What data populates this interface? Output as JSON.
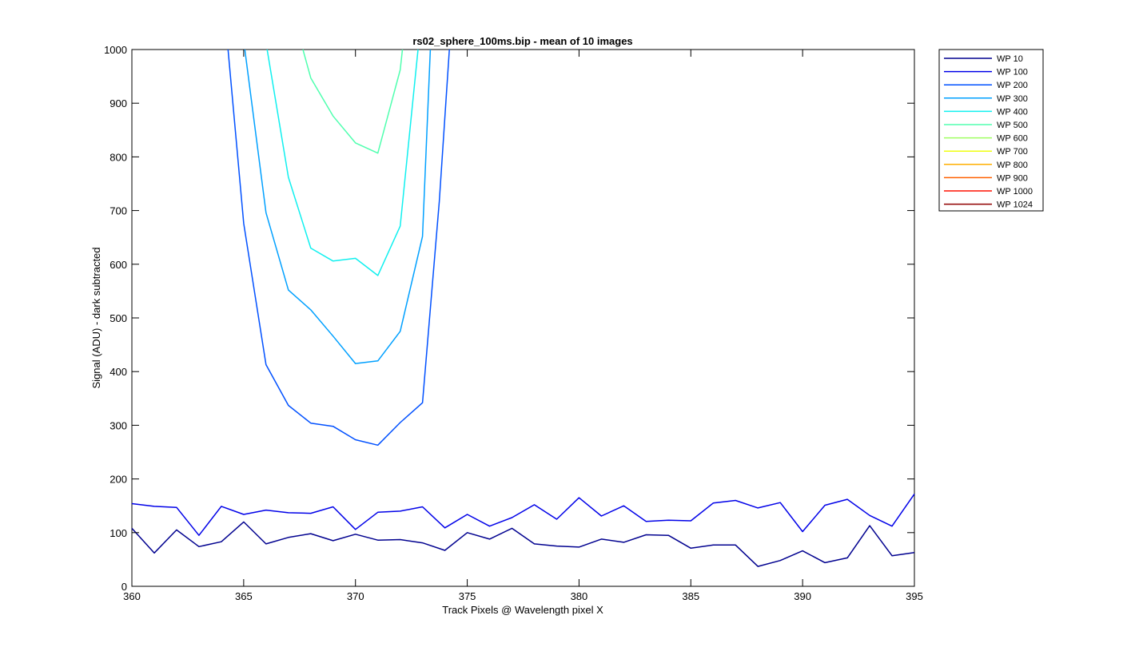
{
  "chart_data": {
    "type": "line",
    "title": "rs02_sphere_100ms.bip - mean of 10 images",
    "xlabel": "Track Pixels @ Wavelength pixel X",
    "ylabel": "Signal (ADU) - dark subtracted",
    "xlim": [
      360,
      395
    ],
    "ylim": [
      0,
      1000
    ],
    "xticks": [
      360,
      365,
      370,
      375,
      380,
      385,
      390,
      395
    ],
    "yticks": [
      0,
      100,
      200,
      300,
      400,
      500,
      600,
      700,
      800,
      900,
      1000
    ],
    "grid": false,
    "legend_position": "outside-top-right",
    "series": [
      {
        "name": "WP 10",
        "color": "#00008f",
        "x": [
          360,
          361,
          362,
          363,
          364,
          365,
          366,
          367,
          368,
          369,
          370,
          371,
          372,
          373,
          374,
          375,
          376,
          377,
          378,
          379,
          380,
          381,
          382,
          383,
          384,
          385,
          386,
          387,
          388,
          389,
          390,
          391,
          392,
          393,
          394,
          395
        ],
        "y": [
          108,
          62,
          105,
          74,
          83,
          120,
          79,
          91,
          98,
          85,
          97,
          86,
          87,
          81,
          67,
          100,
          88,
          108,
          79,
          75,
          73,
          88,
          82,
          96,
          95,
          71,
          77,
          77,
          37,
          48,
          66,
          44,
          53,
          113,
          57,
          63
        ]
      },
      {
        "name": "WP 100",
        "color": "#0000e8",
        "x": [
          360,
          361,
          362,
          363,
          364,
          365,
          366,
          367,
          368,
          369,
          370,
          371,
          372,
          373,
          374,
          375,
          376,
          377,
          378,
          379,
          380,
          381,
          382,
          383,
          384,
          385,
          386,
          387,
          388,
          389,
          390,
          391,
          392,
          393,
          394,
          395
        ],
        "y": [
          154,
          149,
          147,
          95,
          149,
          134,
          142,
          137,
          136,
          148,
          106,
          138,
          140,
          148,
          109,
          134,
          112,
          128,
          152,
          125,
          165,
          131,
          150,
          121,
          123,
          122,
          155,
          160,
          146,
          156,
          102,
          151,
          162,
          132,
          112,
          172
        ]
      },
      {
        "name": "WP 200",
        "color": "#0050ff",
        "x": [
          364.3,
          365,
          366,
          367,
          368,
          369,
          370,
          371,
          372,
          373,
          373.75,
          374.2
        ],
        "y": [
          1000,
          676,
          413,
          337,
          304,
          298,
          273,
          263,
          305,
          342,
          717,
          1000
        ]
      },
      {
        "name": "WP 300",
        "color": "#00a0ff",
        "x": [
          365.05,
          366,
          367,
          368,
          369,
          370,
          371,
          372,
          373,
          373.35
        ],
        "y": [
          1000,
          696,
          552,
          515,
          466,
          415,
          420,
          475,
          652,
          1000
        ]
      },
      {
        "name": "WP 400",
        "color": "#10f0ef",
        "x": [
          366.05,
          367,
          368,
          369,
          370,
          371,
          372,
          372.8
        ],
        "y": [
          1000,
          762,
          630,
          606,
          611,
          579,
          671,
          1000
        ]
      },
      {
        "name": "WP 500",
        "color": "#50ffaf",
        "x": [
          367.65,
          368,
          369,
          370,
          371,
          372,
          372.1
        ],
        "y": [
          1000,
          947,
          876,
          826,
          807,
          962,
          1000
        ]
      },
      {
        "name": "WP 600",
        "color": "#9fff60",
        "x": [],
        "y": []
      },
      {
        "name": "WP 700",
        "color": "#efff10",
        "x": [],
        "y": []
      },
      {
        "name": "WP 800",
        "color": "#ffaf00",
        "x": [],
        "y": []
      },
      {
        "name": "WP 900",
        "color": "#ff6000",
        "x": [],
        "y": []
      },
      {
        "name": "WP 1000",
        "color": "#ff1000",
        "x": [],
        "y": []
      },
      {
        "name": "WP 1024",
        "color": "#8f0000",
        "x": [],
        "y": []
      }
    ]
  }
}
